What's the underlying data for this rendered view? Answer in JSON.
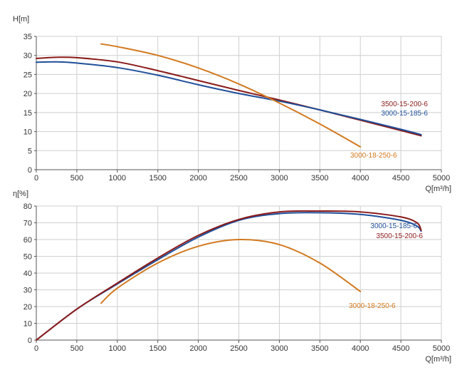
{
  "chart_data": [
    {
      "type": "line",
      "ylabel": "H[m]",
      "xlabel": "Q[m³/h]",
      "xlim": [
        0,
        5000
      ],
      "ylim": [
        0,
        35
      ],
      "xticks": [
        0,
        500,
        1000,
        1500,
        2000,
        2500,
        3000,
        3500,
        4000,
        4500,
        5000
      ],
      "yticks": [
        0,
        5,
        10,
        15,
        20,
        25,
        30,
        35
      ],
      "grid": true,
      "series": [
        {
          "name": "3500-15-200-6",
          "color": "#8b1a1a",
          "x": [
            0,
            250,
            500,
            1000,
            1500,
            2000,
            2500,
            3000,
            3500,
            4000,
            4500,
            4750
          ],
          "y": [
            29.2,
            29.5,
            29.4,
            28.3,
            26.0,
            23.4,
            20.8,
            18.3,
            15.7,
            13.0,
            10.3,
            8.9
          ]
        },
        {
          "name": "3000-15-185-6",
          "color": "#1f4e99",
          "x": [
            0,
            250,
            500,
            1000,
            1500,
            2000,
            2500,
            3000,
            3500,
            4000,
            4500,
            4750
          ],
          "y": [
            28.2,
            28.3,
            28.0,
            26.8,
            24.8,
            22.3,
            20.0,
            18.0,
            15.7,
            13.2,
            10.6,
            9.2
          ]
        },
        {
          "name": "3000-18-250-6",
          "color": "#d2791f",
          "x": [
            800,
            1000,
            1500,
            2000,
            2500,
            3000,
            3500,
            4000
          ],
          "y": [
            33.0,
            32.3,
            30.0,
            26.7,
            22.5,
            17.5,
            12.0,
            6.0
          ]
        }
      ]
    },
    {
      "type": "line",
      "ylabel": "η[%]",
      "xlabel": "Q[m³/h]",
      "xlim": [
        0,
        5000
      ],
      "ylim": [
        0,
        80
      ],
      "xticks": [
        0,
        500,
        1000,
        1500,
        2000,
        2500,
        3000,
        3500,
        4000,
        4500,
        5000
      ],
      "yticks": [
        0,
        10,
        20,
        30,
        40,
        50,
        60,
        70,
        80
      ],
      "grid": true,
      "series": [
        {
          "name": "3000-15-185-6",
          "color": "#1f4e99",
          "x": [
            0,
            500,
            1000,
            1500,
            2000,
            2500,
            3000,
            3500,
            4000,
            4500,
            4700,
            4750
          ],
          "y": [
            0,
            18.5,
            33.5,
            48.0,
            61.5,
            71.5,
            75.5,
            76.0,
            75.0,
            71.5,
            68.0,
            65.0
          ]
        },
        {
          "name": "3500-15-200-6",
          "color": "#8b1a1a",
          "x": [
            0,
            500,
            1000,
            1500,
            2000,
            2500,
            3000,
            3500,
            4000,
            4500,
            4700,
            4750
          ],
          "y": [
            0,
            18.5,
            34.0,
            49.0,
            62.5,
            72.0,
            76.5,
            77.0,
            76.5,
            73.5,
            70.0,
            65.5
          ]
        },
        {
          "name": "3000-18-250-6",
          "color": "#d2791f",
          "x": [
            800,
            1000,
            1500,
            2000,
            2500,
            3000,
            3500,
            4000
          ],
          "y": [
            22.0,
            31.0,
            46.0,
            56.0,
            60.0,
            57.0,
            46.0,
            29.0
          ]
        }
      ]
    }
  ]
}
